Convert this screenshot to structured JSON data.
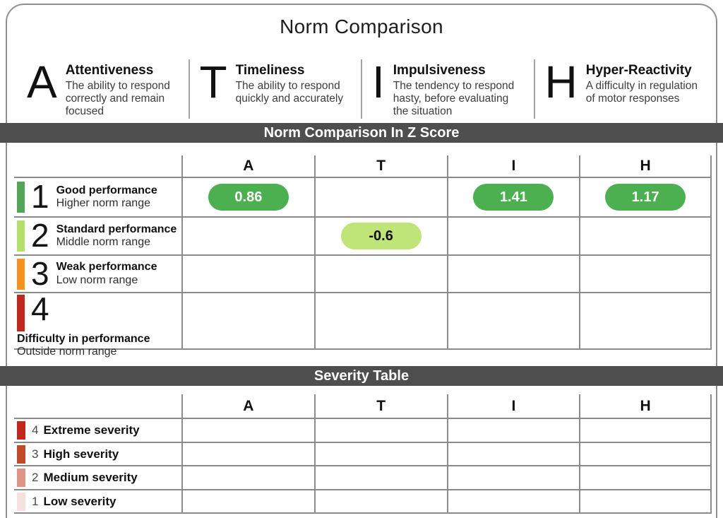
{
  "title": "Norm Comparison",
  "traits": [
    {
      "letter": "A",
      "name": "Attentiveness",
      "description": "The ability to respond correctly and remain focused"
    },
    {
      "letter": "T",
      "name": "Timeliness",
      "description": "The ability to respond quickly and accurately"
    },
    {
      "letter": "I",
      "name": "Impulsiveness",
      "description": "The tendency to respond hasty, before evaluating the situation"
    },
    {
      "letter": "H",
      "name": "Hyper-Reactivity",
      "description": "A difficulty in regulation of motor responses"
    }
  ],
  "zscore": {
    "banner": "Norm Comparison In Z Score",
    "columns": [
      "A",
      "T",
      "I",
      "H"
    ],
    "rows": [
      {
        "number": "1",
        "label": "Good performance",
        "sublabel": "Higher norm range",
        "marker_color": "#53a657",
        "values": {
          "A": "0.86",
          "T": "",
          "I": "1.41",
          "H": "1.17"
        }
      },
      {
        "number": "2",
        "label": "Standard performance",
        "sublabel": "Middle norm range",
        "marker_color": "#b5df6b",
        "values": {
          "A": "",
          "T": "-0.6",
          "I": "",
          "H": ""
        }
      },
      {
        "number": "3",
        "label": "Weak performance",
        "sublabel": "Low norm range",
        "marker_color": "#f6921f",
        "values": {
          "A": "",
          "T": "",
          "I": "",
          "H": ""
        }
      },
      {
        "number": "4",
        "label": "Difficulty in performance",
        "sublabel": "Outside norm range",
        "marker_color": "#c1271d",
        "values": {
          "A": "",
          "T": "",
          "I": "",
          "H": ""
        }
      }
    ],
    "pill_colors": {
      "good": "#4caf50",
      "standard": "#bfe477"
    }
  },
  "severity": {
    "banner": "Severity Table",
    "columns": [
      "A",
      "T",
      "I",
      "H"
    ],
    "rows": [
      {
        "number": "4",
        "label": "Extreme severity",
        "marker_color": "#c1271d"
      },
      {
        "number": "3",
        "label": "High severity",
        "marker_color": "#c04b2b"
      },
      {
        "number": "2",
        "label": "Medium severity",
        "marker_color": "#df9583"
      },
      {
        "number": "1",
        "label": "Low severity",
        "marker_color": "#f5e1de"
      }
    ]
  },
  "theme": {
    "banner_bg": "#4e4e4e",
    "grid_line": "#8b8b8b",
    "card_border": "#8f8f8f"
  }
}
